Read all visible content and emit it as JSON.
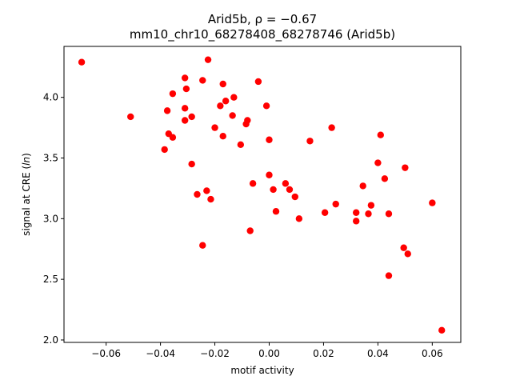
{
  "chart_data": {
    "type": "scatter",
    "title_line1": "Arid5b, ρ = −0.67",
    "title_line2": "mm10_chr10_68278408_68278746 (Arid5b)",
    "xlabel": "motif activity",
    "ylabel": "signal at CRE (ln)",
    "xlim": [
      -0.0755,
      0.0705
    ],
    "ylim": [
      1.98,
      4.42
    ],
    "x_ticks": [
      -0.06,
      -0.04,
      -0.02,
      0.0,
      0.02,
      0.04,
      0.06
    ],
    "x_tick_labels": [
      "−0.06",
      "−0.04",
      "−0.02",
      "0.00",
      "0.02",
      "0.04",
      "0.06"
    ],
    "y_ticks": [
      2.0,
      2.5,
      3.0,
      3.5,
      4.0
    ],
    "y_tick_labels": [
      "2.0",
      "2.5",
      "3.0",
      "3.5",
      "4.0"
    ],
    "grid": false,
    "marker_color": "#ff0000",
    "points": [
      {
        "x": -0.069,
        "y": 4.29
      },
      {
        "x": -0.051,
        "y": 3.84
      },
      {
        "x": -0.0385,
        "y": 3.57
      },
      {
        "x": -0.0375,
        "y": 3.89
      },
      {
        "x": -0.037,
        "y": 3.7
      },
      {
        "x": -0.0355,
        "y": 3.67
      },
      {
        "x": -0.0355,
        "y": 4.03
      },
      {
        "x": -0.031,
        "y": 4.16
      },
      {
        "x": -0.031,
        "y": 3.91
      },
      {
        "x": -0.031,
        "y": 3.81
      },
      {
        "x": -0.0305,
        "y": 4.07
      },
      {
        "x": -0.0285,
        "y": 3.84
      },
      {
        "x": -0.0285,
        "y": 3.45
      },
      {
        "x": -0.0265,
        "y": 3.2
      },
      {
        "x": -0.0245,
        "y": 4.14
      },
      {
        "x": -0.0245,
        "y": 2.78
      },
      {
        "x": -0.023,
        "y": 3.23
      },
      {
        "x": -0.0225,
        "y": 4.31
      },
      {
        "x": -0.0215,
        "y": 3.16
      },
      {
        "x": -0.02,
        "y": 3.75
      },
      {
        "x": -0.018,
        "y": 3.93
      },
      {
        "x": -0.017,
        "y": 4.11
      },
      {
        "x": -0.017,
        "y": 3.68
      },
      {
        "x": -0.016,
        "y": 3.97
      },
      {
        "x": -0.0135,
        "y": 3.85
      },
      {
        "x": -0.013,
        "y": 4.0
      },
      {
        "x": -0.0105,
        "y": 3.61
      },
      {
        "x": -0.0085,
        "y": 3.78
      },
      {
        "x": -0.008,
        "y": 3.81
      },
      {
        "x": -0.007,
        "y": 2.9
      },
      {
        "x": -0.006,
        "y": 3.29
      },
      {
        "x": -0.004,
        "y": 4.13
      },
      {
        "x": -0.001,
        "y": 3.93
      },
      {
        "x": 0.0,
        "y": 3.65
      },
      {
        "x": 0.0,
        "y": 3.36
      },
      {
        "x": 0.0015,
        "y": 3.24
      },
      {
        "x": 0.0025,
        "y": 3.06
      },
      {
        "x": 0.006,
        "y": 3.29
      },
      {
        "x": 0.0075,
        "y": 3.24
      },
      {
        "x": 0.0095,
        "y": 3.18
      },
      {
        "x": 0.011,
        "y": 3.0
      },
      {
        "x": 0.015,
        "y": 3.64
      },
      {
        "x": 0.0205,
        "y": 3.05
      },
      {
        "x": 0.023,
        "y": 3.75
      },
      {
        "x": 0.0245,
        "y": 3.12
      },
      {
        "x": 0.032,
        "y": 3.05
      },
      {
        "x": 0.032,
        "y": 2.98
      },
      {
        "x": 0.0345,
        "y": 3.27
      },
      {
        "x": 0.0365,
        "y": 3.04
      },
      {
        "x": 0.0375,
        "y": 3.11
      },
      {
        "x": 0.04,
        "y": 3.46
      },
      {
        "x": 0.041,
        "y": 3.69
      },
      {
        "x": 0.0425,
        "y": 3.33
      },
      {
        "x": 0.044,
        "y": 2.53
      },
      {
        "x": 0.044,
        "y": 3.04
      },
      {
        "x": 0.0495,
        "y": 2.76
      },
      {
        "x": 0.05,
        "y": 3.42
      },
      {
        "x": 0.051,
        "y": 2.71
      },
      {
        "x": 0.06,
        "y": 3.13
      },
      {
        "x": 0.0635,
        "y": 2.08
      }
    ]
  }
}
